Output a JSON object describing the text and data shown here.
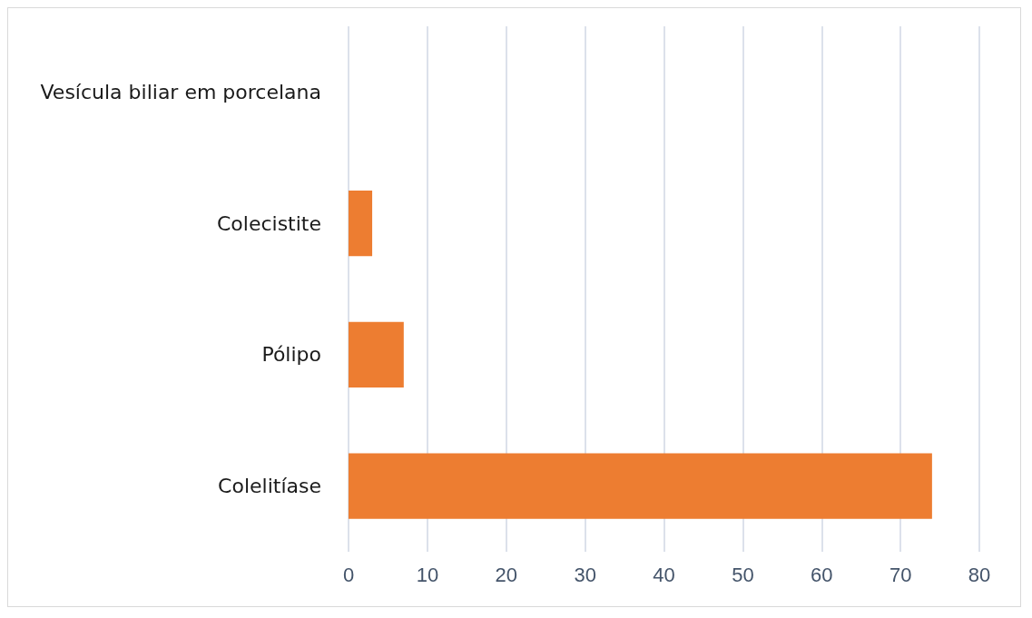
{
  "chart_data": {
    "type": "bar",
    "orientation": "horizontal",
    "categories": [
      "Vesícula biliar em porcelana",
      "Colecistite",
      "Pólipo",
      "Colelitíase"
    ],
    "values": [
      0,
      3,
      7,
      74
    ],
    "color": "#ed7d31",
    "xlim": [
      0,
      80
    ],
    "xticks": [
      0,
      10,
      20,
      30,
      40,
      50,
      60,
      70,
      80
    ],
    "grid": "x"
  }
}
